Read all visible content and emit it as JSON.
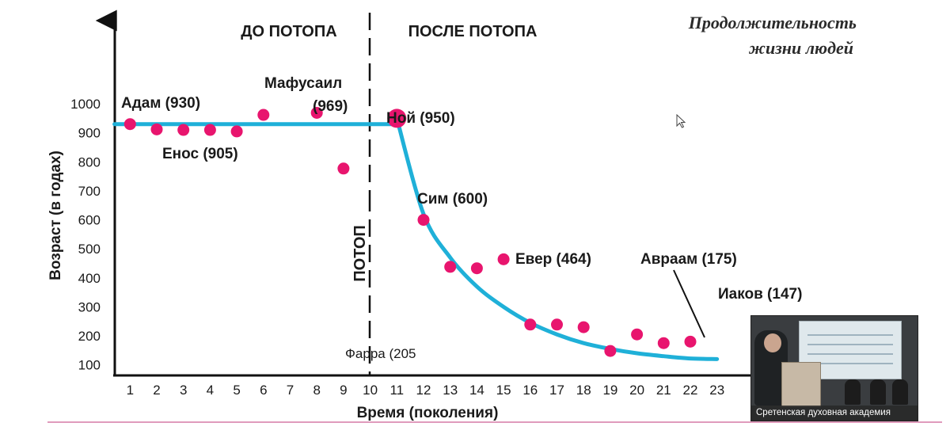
{
  "chart_data": {
    "type": "scatter",
    "title_lines": [
      "Продолжительность",
      "жизни людей"
    ],
    "xlabel": "Время (поколения)",
    "ylabel": "Возраст (в годах)",
    "xlim": [
      0,
      24
    ],
    "ylim": [
      0,
      1050
    ],
    "x_ticks": [
      1,
      2,
      3,
      4,
      5,
      6,
      7,
      8,
      9,
      10,
      11,
      12,
      13,
      14,
      15,
      16,
      17,
      18,
      19,
      20,
      21,
      22,
      23
    ],
    "y_ticks": [
      100,
      200,
      300,
      400,
      500,
      600,
      700,
      800,
      900,
      1000
    ],
    "grid": false,
    "era_labels": {
      "before": "ДО ПОТОПА",
      "after": "ПОСЛЕ ПОТОПА",
      "flood": "ПОТОП"
    },
    "points": [
      {
        "x": 1,
        "y": 930
      },
      {
        "x": 2,
        "y": 912
      },
      {
        "x": 3,
        "y": 910
      },
      {
        "x": 4,
        "y": 910
      },
      {
        "x": 5,
        "y": 905
      },
      {
        "x": 6,
        "y": 962
      },
      {
        "x": 8,
        "y": 969
      },
      {
        "x": 9,
        "y": 777
      },
      {
        "x": 11,
        "y": 950,
        "major": true
      },
      {
        "x": 12,
        "y": 600
      },
      {
        "x": 13,
        "y": 438
      },
      {
        "x": 14,
        "y": 433
      },
      {
        "x": 15,
        "y": 464
      },
      {
        "x": 16,
        "y": 239
      },
      {
        "x": 17,
        "y": 239
      },
      {
        "x": 18,
        "y": 230
      },
      {
        "x": 19,
        "y": 148
      },
      {
        "x": 20,
        "y": 205
      },
      {
        "x": 21,
        "y": 175
      },
      {
        "x": 22,
        "y": 180
      }
    ],
    "trend_before": {
      "x": [
        0,
        11
      ],
      "y": 930
    },
    "trend_after": {
      "type": "exponential-decay",
      "x": [
        11,
        12,
        13,
        14,
        15,
        16,
        17,
        18,
        19,
        20,
        21,
        22,
        23
      ],
      "y": [
        950,
        620,
        470,
        370,
        300,
        245,
        205,
        175,
        155,
        140,
        130,
        122,
        120
      ]
    },
    "annotations": [
      {
        "text": "Адам (930)"
      },
      {
        "text": "Енос (905)"
      },
      {
        "text": "Мафусаил"
      },
      {
        "text": "(969)"
      },
      {
        "text": "Ной (950)"
      },
      {
        "text": "Сим (600)"
      },
      {
        "text": "Евер (464)"
      },
      {
        "text": "Авраам (175)"
      },
      {
        "text": "Иаков (147)"
      },
      {
        "text": "Фарра (205"
      }
    ]
  },
  "video_overlay": {
    "caption": "Сретенская духовная академия"
  },
  "colors": {
    "points": "#e8156e",
    "trend": "#1fb0d8",
    "axis": "#111111",
    "bottom_rule": "#d67aa6"
  }
}
